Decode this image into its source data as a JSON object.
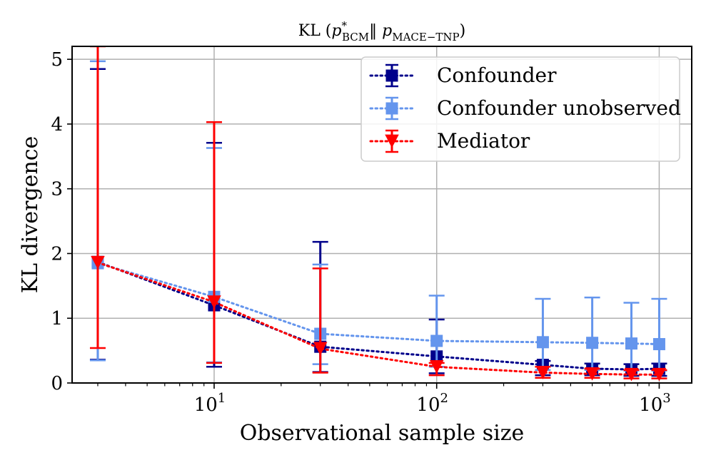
{
  "chart_data": {
    "type": "line",
    "title": "KL (p*_BCM || p_MACE-TNP)",
    "title_parts": {
      "kl": "KL",
      "p1_base": "p",
      "p1_sup": "*",
      "p1_sub": "BCM",
      "p2_base": "p",
      "p2_sub": "MACE−TNP"
    },
    "xlabel": "Observational sample size",
    "ylabel": "KL divergence",
    "xscale": "log",
    "xlim": [
      2.3,
      1400
    ],
    "ylim": [
      0,
      5.2
    ],
    "xticks": [
      {
        "value": 10,
        "base": "10",
        "exp": "1"
      },
      {
        "value": 100,
        "base": "10",
        "exp": "2"
      },
      {
        "value": 1000,
        "base": "10",
        "exp": "3"
      }
    ],
    "yticks": [
      0,
      1,
      2,
      3,
      4,
      5
    ],
    "grid": true,
    "legend_position": "top-right",
    "x": [
      3,
      10,
      30,
      100,
      300,
      500,
      750,
      1000
    ],
    "series": [
      {
        "name": "Confounder",
        "color": "#00008b",
        "marker": "square",
        "y": [
          1.87,
          1.2,
          0.56,
          0.41,
          0.28,
          0.22,
          0.21,
          0.22
        ],
        "lower": [
          0.36,
          0.25,
          0.17,
          0.15,
          0.12,
          0.12,
          0.11,
          0.11
        ],
        "upper": [
          4.85,
          3.71,
          2.18,
          0.98,
          0.34,
          0.3,
          0.29,
          0.3
        ]
      },
      {
        "name": "Confounder unobserved",
        "color": "#6495ed",
        "marker": "square",
        "y": [
          1.85,
          1.33,
          0.76,
          0.65,
          0.63,
          0.62,
          0.61,
          0.6
        ],
        "lower": [
          0.35,
          0.32,
          0.29,
          0.25,
          0.2,
          0.2,
          0.19,
          0.19
        ],
        "upper": [
          4.97,
          3.63,
          1.83,
          1.35,
          1.3,
          1.32,
          1.24,
          1.3
        ]
      },
      {
        "name": "Mediator",
        "color": "#ff0000",
        "marker": "triangle-down",
        "y": [
          1.86,
          1.25,
          0.53,
          0.25,
          0.16,
          0.14,
          0.13,
          0.13
        ],
        "lower": [
          0.54,
          0.31,
          0.16,
          0.12,
          0.08,
          0.08,
          0.07,
          0.07
        ],
        "upper": [
          5.2,
          4.03,
          1.77,
          0.31,
          0.25,
          0.22,
          0.2,
          0.2
        ]
      }
    ]
  }
}
